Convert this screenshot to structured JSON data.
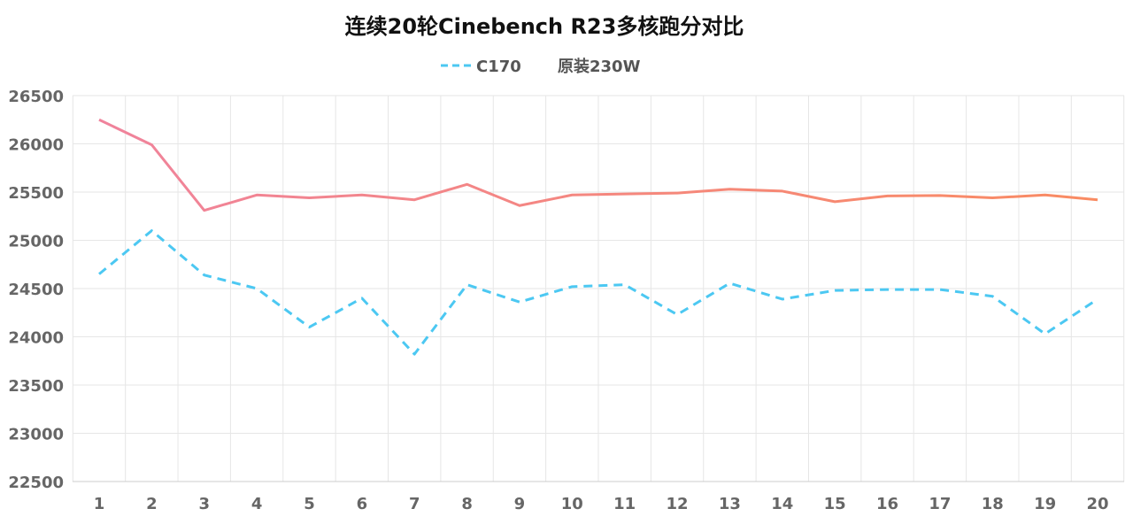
{
  "chart_data": {
    "type": "line",
    "title": "连续20轮Cinebench R23多核跑分对比",
    "xlabel": "",
    "ylabel": "",
    "x": [
      1,
      2,
      3,
      4,
      5,
      6,
      7,
      8,
      9,
      10,
      11,
      12,
      13,
      14,
      15,
      16,
      17,
      18,
      19,
      20
    ],
    "ylim": [
      22500,
      26500
    ],
    "yticks": [
      22500,
      23000,
      23500,
      24000,
      24500,
      25000,
      25500,
      26000,
      26500
    ],
    "grid": true,
    "legend_position": "top-center",
    "series": [
      {
        "name": "C170",
        "style": "dashed",
        "color": "#4cc8f2",
        "values": [
          24650,
          25100,
          24640,
          24500,
          24100,
          24400,
          23820,
          24540,
          24360,
          24520,
          24540,
          24230,
          24555,
          24390,
          24480,
          24490,
          24490,
          24420,
          24030,
          24390
        ]
      },
      {
        "name": "原装230W",
        "style": "solid",
        "color": "#f6847a",
        "values": [
          26250,
          25990,
          25310,
          25470,
          25440,
          25470,
          25420,
          25580,
          25360,
          25470,
          25480,
          25490,
          25530,
          25510,
          25400,
          25460,
          25465,
          25440,
          25470,
          25420
        ]
      }
    ]
  }
}
